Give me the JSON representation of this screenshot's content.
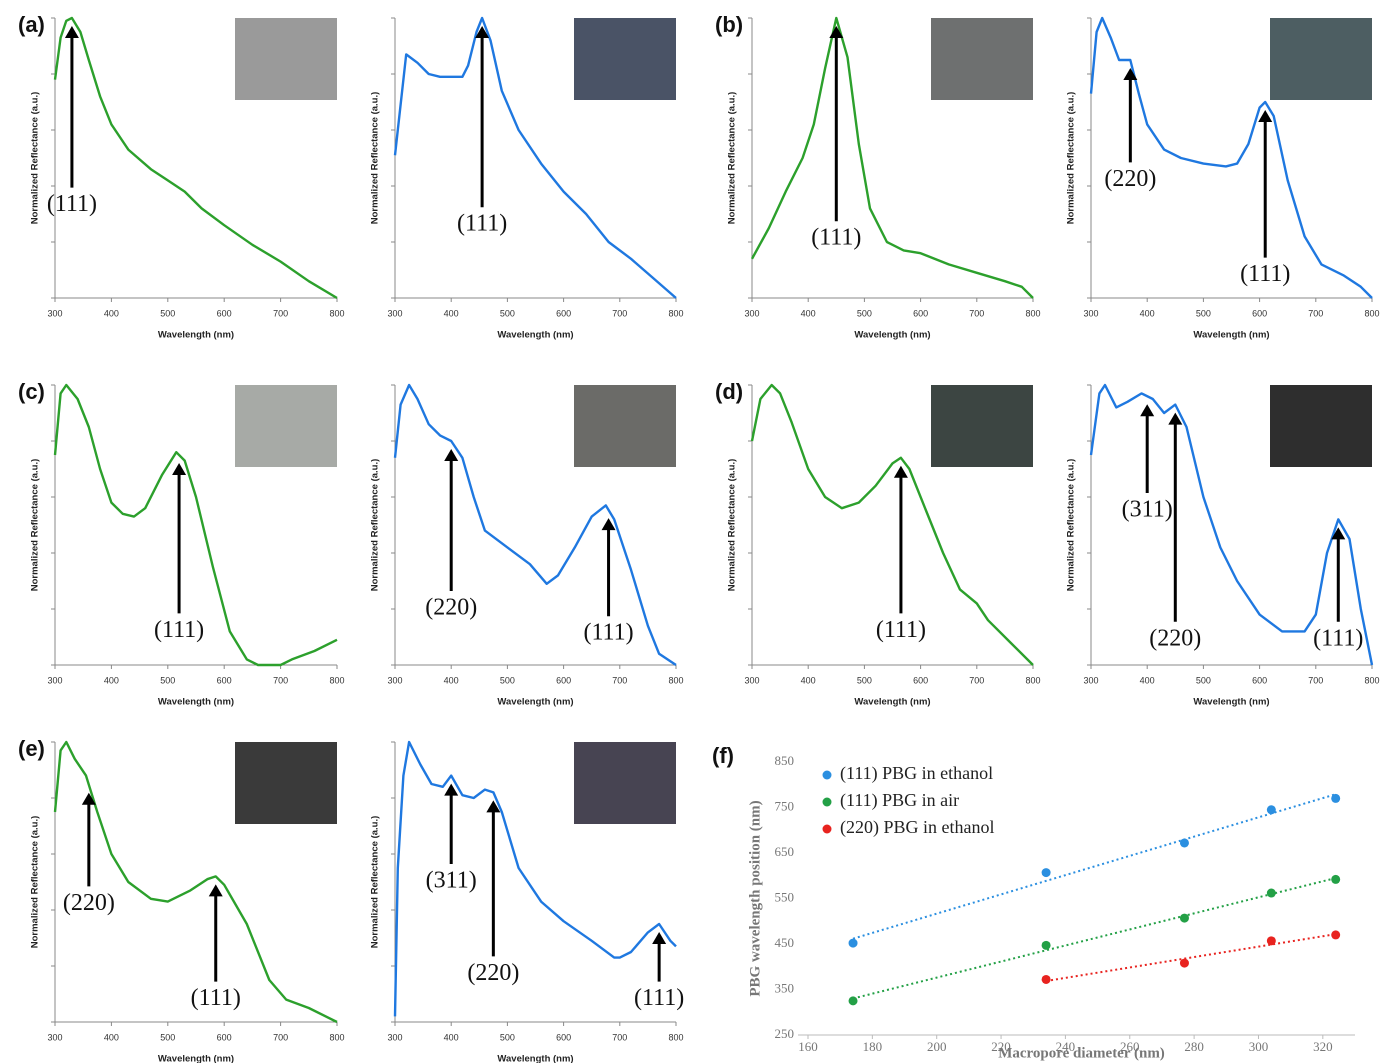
{
  "chart_data": [
    {
      "type": "line",
      "panel_label": "(a)",
      "xlabel": "Wavelength (nm)",
      "ylabel": "Normalized Reflectance (a.u.)",
      "color": "#2ca02c",
      "xlim": [
        300,
        800
      ],
      "xticks": [
        300,
        400,
        500,
        600,
        700,
        800
      ],
      "ylim": [
        0,
        1
      ],
      "yticks": [
        0,
        0.2,
        0.4,
        0.6,
        0.8,
        1
      ],
      "x": [
        300,
        310,
        320,
        330,
        345,
        360,
        380,
        400,
        430,
        470,
        500,
        530,
        560,
        600,
        650,
        700,
        750,
        800
      ],
      "values": [
        0.78,
        0.93,
        0.99,
        1.0,
        0.95,
        0.85,
        0.72,
        0.62,
        0.53,
        0.46,
        0.42,
        0.38,
        0.32,
        0.26,
        0.19,
        0.13,
        0.06,
        0.0
      ],
      "annotations": [
        {
          "label": "(111)",
          "x": 330,
          "y": 0.33
        }
      ]
    },
    {
      "type": "line",
      "xlabel": "Wavelength (nm)",
      "ylabel": "Normalized Reflectance (a.u.)",
      "color": "#1f78e0",
      "xlim": [
        300,
        800
      ],
      "xticks": [
        300,
        400,
        500,
        600,
        700,
        800
      ],
      "ylim": [
        0,
        1
      ],
      "yticks": [
        0,
        0.2,
        0.4,
        0.6,
        0.8,
        1
      ],
      "x": [
        300,
        320,
        340,
        360,
        380,
        400,
        420,
        430,
        445,
        455,
        470,
        490,
        520,
        560,
        600,
        640,
        680,
        720,
        760,
        800
      ],
      "values": [
        0.51,
        0.87,
        0.84,
        0.8,
        0.79,
        0.79,
        0.79,
        0.83,
        0.95,
        1.0,
        0.92,
        0.74,
        0.6,
        0.48,
        0.38,
        0.3,
        0.2,
        0.14,
        0.07,
        0.0
      ],
      "annotations": [
        {
          "label": "(111)",
          "x": 455,
          "y": 0.26
        }
      ]
    },
    {
      "type": "line",
      "panel_label": "(b)",
      "xlabel": "Wavelength (nm)",
      "ylabel": "Normalized Reflectance (a.u.)",
      "color": "#2ca02c",
      "xlim": [
        300,
        800
      ],
      "xticks": [
        300,
        400,
        500,
        600,
        700,
        800
      ],
      "ylim": [
        0,
        1
      ],
      "yticks": [
        0,
        0.2,
        0.4,
        0.6,
        0.8,
        1
      ],
      "x": [
        300,
        330,
        360,
        390,
        410,
        430,
        450,
        470,
        490,
        510,
        540,
        570,
        600,
        650,
        700,
        750,
        780,
        800
      ],
      "values": [
        0.14,
        0.25,
        0.38,
        0.5,
        0.62,
        0.82,
        1.0,
        0.86,
        0.55,
        0.32,
        0.2,
        0.17,
        0.16,
        0.12,
        0.09,
        0.06,
        0.04,
        0.0
      ],
      "annotations": [
        {
          "label": "(111)",
          "x": 450,
          "y": 0.21
        }
      ]
    },
    {
      "type": "line",
      "xlabel": "Wavelength (nm)",
      "ylabel": "Normalized Reflectance (a.u.)",
      "color": "#1f78e0",
      "xlim": [
        300,
        800
      ],
      "xticks": [
        300,
        400,
        500,
        600,
        700,
        800
      ],
      "ylim": [
        0,
        1
      ],
      "yticks": [
        0,
        0.2,
        0.4,
        0.6,
        0.8,
        1
      ],
      "x": [
        300,
        310,
        320,
        335,
        350,
        370,
        385,
        400,
        430,
        460,
        500,
        540,
        560,
        580,
        600,
        610,
        625,
        650,
        680,
        710,
        750,
        780,
        800
      ],
      "values": [
        0.73,
        0.95,
        1.0,
        0.93,
        0.85,
        0.85,
        0.73,
        0.62,
        0.53,
        0.5,
        0.48,
        0.47,
        0.48,
        0.55,
        0.68,
        0.7,
        0.65,
        0.42,
        0.22,
        0.12,
        0.08,
        0.04,
        0.0
      ],
      "annotations": [
        {
          "label": "(220)",
          "x": 370,
          "y": 0.42
        },
        {
          "label": "(111)",
          "x": 610,
          "y": 0.08
        }
      ]
    },
    {
      "type": "line",
      "panel_label": "(c)",
      "xlabel": "Wavelength (nm)",
      "ylabel": "Normalized Reflectance (a.u.)",
      "color": "#2ca02c",
      "xlim": [
        300,
        800
      ],
      "xticks": [
        300,
        400,
        500,
        600,
        700,
        800
      ],
      "ylim": [
        0,
        1
      ],
      "yticks": [
        0,
        0.2,
        0.4,
        0.6,
        0.8,
        1
      ],
      "x": [
        300,
        310,
        320,
        340,
        360,
        380,
        400,
        420,
        440,
        460,
        490,
        515,
        530,
        550,
        580,
        610,
        640,
        660,
        700,
        720,
        760,
        800
      ],
      "values": [
        0.75,
        0.97,
        1.0,
        0.95,
        0.85,
        0.7,
        0.58,
        0.54,
        0.53,
        0.56,
        0.68,
        0.76,
        0.73,
        0.6,
        0.35,
        0.12,
        0.02,
        0.0,
        0.0,
        0.02,
        0.05,
        0.09
      ],
      "annotations": [
        {
          "label": "(111)",
          "x": 520,
          "y": 0.12
        }
      ]
    },
    {
      "type": "line",
      "xlabel": "Wavelength (nm)",
      "ylabel": "Normalized Reflectance (a.u.)",
      "color": "#1f78e0",
      "xlim": [
        300,
        800
      ],
      "xticks": [
        300,
        400,
        500,
        600,
        700,
        800
      ],
      "ylim": [
        0,
        1
      ],
      "yticks": [
        0,
        0.2,
        0.4,
        0.6,
        0.8,
        1
      ],
      "x": [
        300,
        310,
        325,
        340,
        360,
        380,
        400,
        420,
        440,
        460,
        500,
        540,
        570,
        590,
        620,
        650,
        675,
        690,
        720,
        750,
        770,
        800
      ],
      "values": [
        0.74,
        0.93,
        1.0,
        0.95,
        0.86,
        0.82,
        0.8,
        0.74,
        0.6,
        0.48,
        0.42,
        0.36,
        0.29,
        0.32,
        0.42,
        0.53,
        0.57,
        0.52,
        0.34,
        0.14,
        0.04,
        0.0
      ],
      "annotations": [
        {
          "label": "(220)",
          "x": 400,
          "y": 0.2
        },
        {
          "label": "(111)",
          "x": 680,
          "y": 0.11
        }
      ]
    },
    {
      "type": "line",
      "panel_label": "(d)",
      "xlabel": "Wavelength (nm)",
      "ylabel": "Normalized Reflectance (a.u.)",
      "color": "#2ca02c",
      "xlim": [
        300,
        800
      ],
      "xticks": [
        300,
        400,
        500,
        600,
        700,
        800
      ],
      "ylim": [
        0,
        1
      ],
      "yticks": [
        0,
        0.2,
        0.4,
        0.6,
        0.8,
        1
      ],
      "x": [
        300,
        315,
        335,
        350,
        370,
        400,
        430,
        460,
        490,
        520,
        550,
        565,
        580,
        610,
        640,
        670,
        700,
        720,
        760,
        800
      ],
      "values": [
        0.8,
        0.95,
        1.0,
        0.97,
        0.87,
        0.7,
        0.6,
        0.56,
        0.58,
        0.64,
        0.72,
        0.74,
        0.7,
        0.55,
        0.4,
        0.27,
        0.22,
        0.16,
        0.08,
        0.0
      ],
      "annotations": [
        {
          "label": "(111)",
          "x": 565,
          "y": 0.12
        }
      ]
    },
    {
      "type": "line",
      "xlabel": "Wavelength (nm)",
      "ylabel": "Normalized Reflectance (a.u.)",
      "color": "#1f78e0",
      "xlim": [
        300,
        800
      ],
      "xticks": [
        300,
        400,
        500,
        600,
        700,
        800
      ],
      "ylim": [
        0,
        1
      ],
      "yticks": [
        0,
        0.2,
        0.4,
        0.6,
        0.8,
        1
      ],
      "x": [
        300,
        315,
        325,
        345,
        365,
        390,
        410,
        430,
        450,
        470,
        500,
        530,
        560,
        600,
        640,
        680,
        700,
        720,
        740,
        760,
        780,
        800
      ],
      "values": [
        0.75,
        0.97,
        1.0,
        0.92,
        0.94,
        0.97,
        0.95,
        0.9,
        0.93,
        0.85,
        0.6,
        0.42,
        0.3,
        0.18,
        0.12,
        0.12,
        0.18,
        0.4,
        0.52,
        0.45,
        0.2,
        0.0
      ],
      "annotations": [
        {
          "label": "(311)",
          "x": 400,
          "y": 0.55
        },
        {
          "label": "(220)",
          "x": 450,
          "y": 0.09
        },
        {
          "label": "(111)",
          "x": 740,
          "y": 0.09
        }
      ]
    },
    {
      "type": "line",
      "panel_label": "(e)",
      "xlabel": "Wavelength (nm)",
      "ylabel": "Normalized Reflectance (a.u.)",
      "color": "#2ca02c",
      "xlim": [
        300,
        800
      ],
      "xticks": [
        300,
        400,
        500,
        600,
        700,
        800
      ],
      "ylim": [
        0,
        1
      ],
      "yticks": [
        0,
        0.2,
        0.4,
        0.6,
        0.8,
        1
      ],
      "x": [
        300,
        310,
        320,
        335,
        355,
        375,
        400,
        430,
        470,
        500,
        540,
        570,
        585,
        600,
        640,
        680,
        710,
        750,
        800
      ],
      "values": [
        0.75,
        0.97,
        1.0,
        0.94,
        0.88,
        0.75,
        0.6,
        0.5,
        0.44,
        0.43,
        0.47,
        0.51,
        0.52,
        0.49,
        0.35,
        0.15,
        0.08,
        0.05,
        0.0
      ],
      "annotations": [
        {
          "label": "(220)",
          "x": 360,
          "y": 0.42
        },
        {
          "label": "(111)",
          "x": 585,
          "y": 0.08
        }
      ]
    },
    {
      "type": "line",
      "xlabel": "Wavelength (nm)",
      "ylabel": "Normalized Reflectance (a.u.)",
      "color": "#1f78e0",
      "xlim": [
        300,
        800
      ],
      "xticks": [
        300,
        400,
        500,
        600,
        700,
        800
      ],
      "ylim": [
        0,
        1
      ],
      "yticks": [
        0,
        0.2,
        0.4,
        0.6,
        0.8,
        1
      ],
      "x": [
        300,
        305,
        315,
        325,
        345,
        365,
        385,
        400,
        420,
        440,
        460,
        475,
        490,
        520,
        560,
        600,
        650,
        690,
        700,
        720,
        750,
        770,
        790,
        800
      ],
      "values": [
        0.02,
        0.55,
        0.88,
        1.0,
        0.92,
        0.85,
        0.84,
        0.88,
        0.81,
        0.8,
        0.83,
        0.82,
        0.75,
        0.55,
        0.43,
        0.36,
        0.29,
        0.23,
        0.23,
        0.25,
        0.32,
        0.35,
        0.29,
        0.27
      ],
      "annotations": [
        {
          "label": "(311)",
          "x": 400,
          "y": 0.5
        },
        {
          "label": "(220)",
          "x": 475,
          "y": 0.17
        },
        {
          "label": "(111)",
          "x": 770,
          "y": 0.08
        }
      ]
    },
    {
      "type": "scatter",
      "panel_label": "(f)",
      "xlabel": "Macropore diameter (nm)",
      "ylabel": "PBG wavelength position (nm)",
      "xlim": [
        160,
        330
      ],
      "xticks": [
        160,
        180,
        200,
        220,
        240,
        260,
        280,
        300,
        320
      ],
      "ylim": [
        250,
        850
      ],
      "yticks": [
        250,
        350,
        450,
        550,
        650,
        750,
        850
      ],
      "trendline": true,
      "series": [
        {
          "name": "(111) PBG in ethanol",
          "color": "#2b8fe0",
          "x": [
            174,
            234,
            277,
            304,
            324
          ],
          "values": [
            452,
            607,
            672,
            745,
            770
          ]
        },
        {
          "name": "(111) PBG in air",
          "color": "#23a046",
          "x": [
            174,
            234,
            277,
            304,
            324
          ],
          "values": [
            325,
            447,
            507,
            562,
            592
          ]
        },
        {
          "name": "(220) PBG in ethanol",
          "color": "#e8231f",
          "x": [
            234,
            277,
            304,
            324
          ],
          "values": [
            372,
            408,
            457,
            470
          ]
        }
      ]
    }
  ]
}
